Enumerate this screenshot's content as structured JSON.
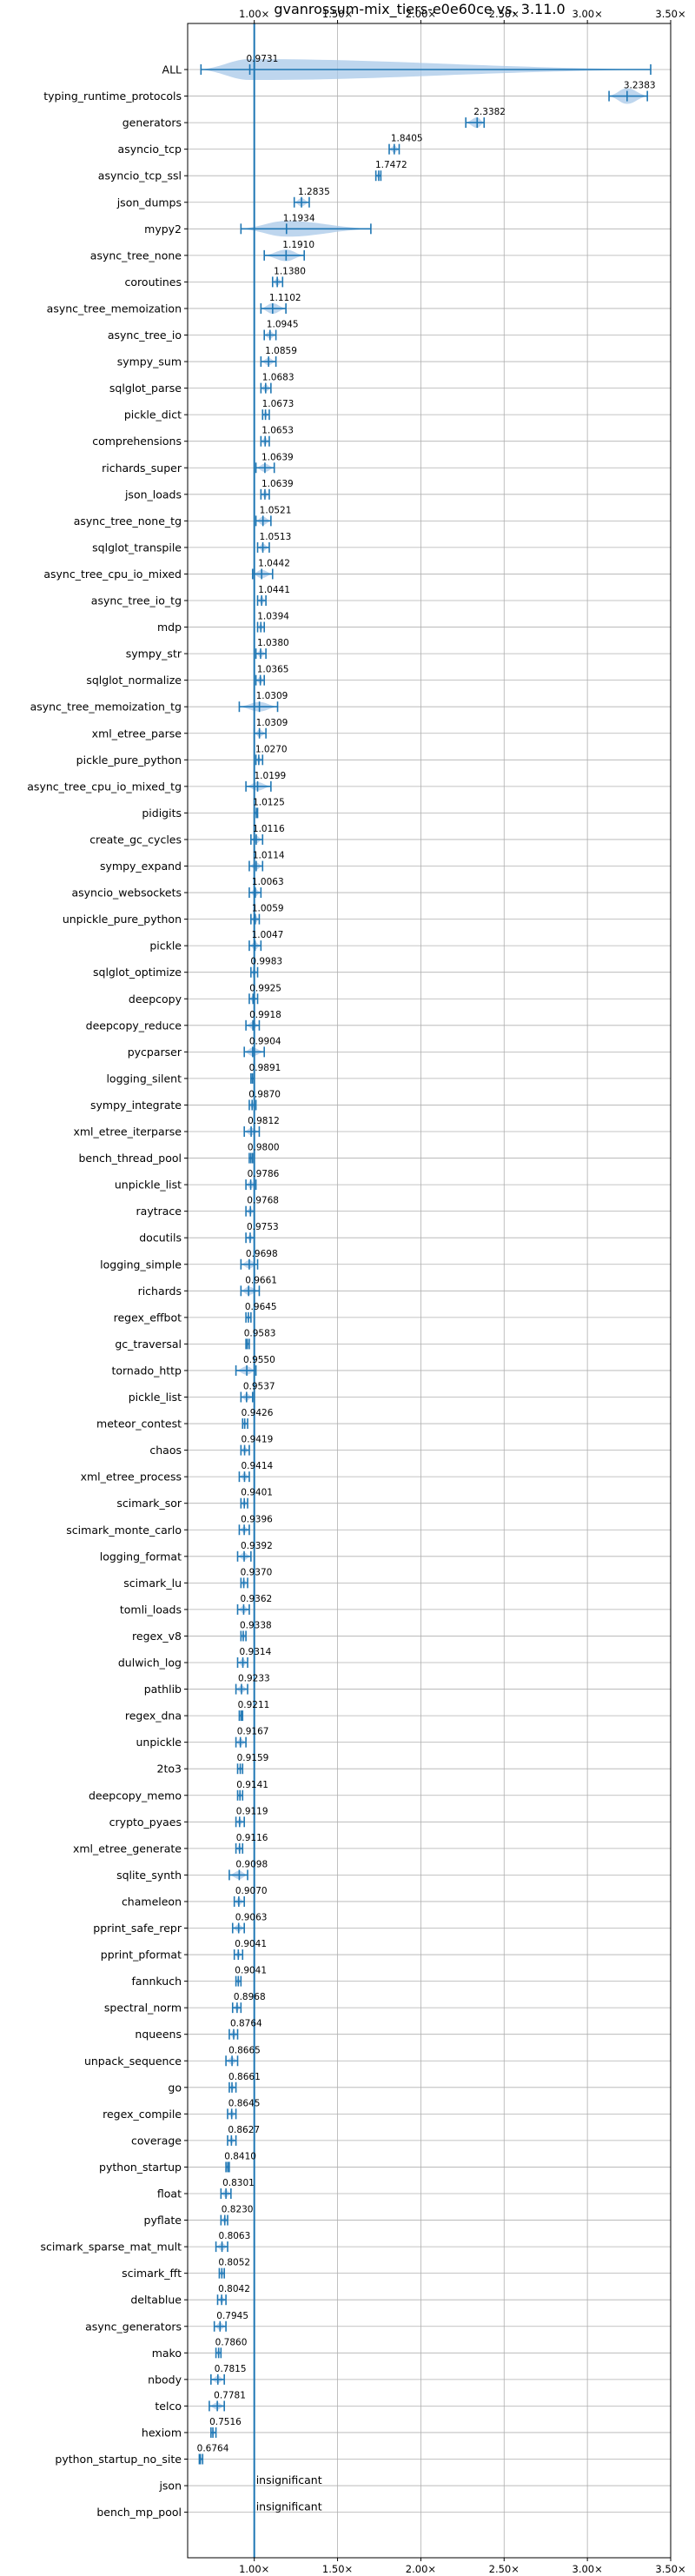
{
  "chart_data": {
    "type": "violin",
    "title": "gvanrossum-mix_tiers-e0e60ce vs. 3.11.0",
    "xlim": [
      0.6,
      3.5
    ],
    "xticks": [
      1.0,
      1.5,
      2.0,
      2.5,
      3.0,
      3.5
    ],
    "xtick_labels": [
      "1.00×",
      "1.50×",
      "2.00×",
      "2.50×",
      "3.00×",
      "3.50×"
    ],
    "reference_line": 1.0,
    "grid": true,
    "accent_color": "#1f77b4",
    "violin_color": "#a8c8e8",
    "benchmarks": [
      {
        "name": "ALL",
        "value": 0.9731,
        "label": "0.9731",
        "min": 0.68,
        "max": 3.38,
        "spread": 0.15
      },
      {
        "name": "typing_runtime_protocols",
        "value": 3.2383,
        "label": "3.2383",
        "min": 3.13,
        "max": 3.36,
        "spread": 0.1
      },
      {
        "name": "generators",
        "value": 2.3382,
        "label": "2.3382",
        "min": 2.27,
        "max": 2.38,
        "spread": 0.05
      },
      {
        "name": "asyncio_tcp",
        "value": 1.8405,
        "label": "1.8405",
        "min": 1.81,
        "max": 1.87,
        "spread": 0.02
      },
      {
        "name": "asyncio_tcp_ssl",
        "value": 1.7472,
        "label": "1.7472",
        "min": 1.73,
        "max": 1.76,
        "spread": 0.01
      },
      {
        "name": "json_dumps",
        "value": 1.2835,
        "label": "1.2835",
        "min": 1.24,
        "max": 1.33,
        "spread": 0.03
      },
      {
        "name": "mypy2",
        "value": 1.1934,
        "label": "1.1934",
        "min": 0.92,
        "max": 1.7,
        "spread": 0.1
      },
      {
        "name": "async_tree_none",
        "value": 1.191,
        "label": "1.1910",
        "min": 1.06,
        "max": 1.3,
        "spread": 0.06
      },
      {
        "name": "coroutines",
        "value": 1.138,
        "label": "1.1380",
        "min": 1.11,
        "max": 1.17,
        "spread": 0.02
      },
      {
        "name": "async_tree_memoization",
        "value": 1.1102,
        "label": "1.1102",
        "min": 1.04,
        "max": 1.19,
        "spread": 0.05
      },
      {
        "name": "async_tree_io",
        "value": 1.0945,
        "label": "1.0945",
        "min": 1.06,
        "max": 1.13,
        "spread": 0.02
      },
      {
        "name": "sympy_sum",
        "value": 1.0859,
        "label": "1.0859",
        "min": 1.04,
        "max": 1.13,
        "spread": 0.02
      },
      {
        "name": "sqlglot_parse",
        "value": 1.0683,
        "label": "1.0683",
        "min": 1.04,
        "max": 1.1,
        "spread": 0.02
      },
      {
        "name": "pickle_dict",
        "value": 1.0673,
        "label": "1.0673",
        "min": 1.05,
        "max": 1.09,
        "spread": 0.01
      },
      {
        "name": "comprehensions",
        "value": 1.0653,
        "label": "1.0653",
        "min": 1.04,
        "max": 1.09,
        "spread": 0.02
      },
      {
        "name": "richards_super",
        "value": 1.0639,
        "label": "1.0639",
        "min": 1.01,
        "max": 1.12,
        "spread": 0.03
      },
      {
        "name": "json_loads",
        "value": 1.0639,
        "label": "1.0639",
        "min": 1.04,
        "max": 1.09,
        "spread": 0.02
      },
      {
        "name": "async_tree_none_tg",
        "value": 1.0521,
        "label": "1.0521",
        "min": 1.01,
        "max": 1.1,
        "spread": 0.03
      },
      {
        "name": "sqlglot_transpile",
        "value": 1.0513,
        "label": "1.0513",
        "min": 1.02,
        "max": 1.09,
        "spread": 0.02
      },
      {
        "name": "async_tree_cpu_io_mixed",
        "value": 1.0442,
        "label": "1.0442",
        "min": 0.99,
        "max": 1.11,
        "spread": 0.03
      },
      {
        "name": "async_tree_io_tg",
        "value": 1.0441,
        "label": "1.0441",
        "min": 1.02,
        "max": 1.07,
        "spread": 0.02
      },
      {
        "name": "mdp",
        "value": 1.0394,
        "label": "1.0394",
        "min": 1.02,
        "max": 1.06,
        "spread": 0.01
      },
      {
        "name": "sympy_str",
        "value": 1.038,
        "label": "1.0380",
        "min": 1.01,
        "max": 1.07,
        "spread": 0.02
      },
      {
        "name": "sqlglot_normalize",
        "value": 1.0365,
        "label": "1.0365",
        "min": 1.01,
        "max": 1.06,
        "spread": 0.02
      },
      {
        "name": "async_tree_memoization_tg",
        "value": 1.0309,
        "label": "1.0309",
        "min": 0.91,
        "max": 1.14,
        "spread": 0.04
      },
      {
        "name": "xml_etree_parse",
        "value": 1.0309,
        "label": "1.0309",
        "min": 1.0,
        "max": 1.07,
        "spread": 0.02
      },
      {
        "name": "pickle_pure_python",
        "value": 1.027,
        "label": "1.0270",
        "min": 1.01,
        "max": 1.05,
        "spread": 0.01
      },
      {
        "name": "async_tree_cpu_io_mixed_tg",
        "value": 1.0199,
        "label": "1.0199",
        "min": 0.95,
        "max": 1.1,
        "spread": 0.03
      },
      {
        "name": "pidigits",
        "value": 1.0125,
        "label": "1.0125",
        "min": 1.0,
        "max": 1.02,
        "spread": 0.005
      },
      {
        "name": "create_gc_cycles",
        "value": 1.0116,
        "label": "1.0116",
        "min": 0.98,
        "max": 1.05,
        "spread": 0.02
      },
      {
        "name": "sympy_expand",
        "value": 1.0114,
        "label": "1.0114",
        "min": 0.97,
        "max": 1.05,
        "spread": 0.02
      },
      {
        "name": "asyncio_websockets",
        "value": 1.0063,
        "label": "1.0063",
        "min": 0.97,
        "max": 1.04,
        "spread": 0.02
      },
      {
        "name": "unpickle_pure_python",
        "value": 1.0059,
        "label": "1.0059",
        "min": 0.98,
        "max": 1.03,
        "spread": 0.02
      },
      {
        "name": "pickle",
        "value": 1.0047,
        "label": "1.0047",
        "min": 0.97,
        "max": 1.04,
        "spread": 0.02
      },
      {
        "name": "sqlglot_optimize",
        "value": 0.9983,
        "label": "0.9983",
        "min": 0.98,
        "max": 1.02,
        "spread": 0.01
      },
      {
        "name": "deepcopy",
        "value": 0.9925,
        "label": "0.9925",
        "min": 0.97,
        "max": 1.02,
        "spread": 0.01
      },
      {
        "name": "deepcopy_reduce",
        "value": 0.9918,
        "label": "0.9918",
        "min": 0.95,
        "max": 1.03,
        "spread": 0.02
      },
      {
        "name": "pycparser",
        "value": 0.9904,
        "label": "0.9904",
        "min": 0.94,
        "max": 1.06,
        "spread": 0.03
      },
      {
        "name": "logging_silent",
        "value": 0.9891,
        "label": "0.9891",
        "min": 0.98,
        "max": 1.0,
        "spread": 0.005
      },
      {
        "name": "sympy_integrate",
        "value": 0.987,
        "label": "0.9870",
        "min": 0.97,
        "max": 1.01,
        "spread": 0.01
      },
      {
        "name": "xml_etree_iterparse",
        "value": 0.9812,
        "label": "0.9812",
        "min": 0.94,
        "max": 1.03,
        "spread": 0.02
      },
      {
        "name": "bench_thread_pool",
        "value": 0.98,
        "label": "0.9800",
        "min": 0.97,
        "max": 0.99,
        "spread": 0.005
      },
      {
        "name": "unpickle_list",
        "value": 0.9786,
        "label": "0.9786",
        "min": 0.95,
        "max": 1.01,
        "spread": 0.02
      },
      {
        "name": "raytrace",
        "value": 0.9768,
        "label": "0.9768",
        "min": 0.95,
        "max": 1.0,
        "spread": 0.01
      },
      {
        "name": "docutils",
        "value": 0.9753,
        "label": "0.9753",
        "min": 0.95,
        "max": 1.0,
        "spread": 0.01
      },
      {
        "name": "logging_simple",
        "value": 0.9698,
        "label": "0.9698",
        "min": 0.92,
        "max": 1.02,
        "spread": 0.03
      },
      {
        "name": "richards",
        "value": 0.9661,
        "label": "0.9661",
        "min": 0.92,
        "max": 1.03,
        "spread": 0.03
      },
      {
        "name": "regex_effbot",
        "value": 0.9645,
        "label": "0.9645",
        "min": 0.95,
        "max": 0.98,
        "spread": 0.01
      },
      {
        "name": "gc_traversal",
        "value": 0.9583,
        "label": "0.9583",
        "min": 0.95,
        "max": 0.97,
        "spread": 0.005
      },
      {
        "name": "tornado_http",
        "value": 0.955,
        "label": "0.9550",
        "min": 0.89,
        "max": 1.01,
        "spread": 0.03
      },
      {
        "name": "pickle_list",
        "value": 0.9537,
        "label": "0.9537",
        "min": 0.92,
        "max": 0.99,
        "spread": 0.02
      },
      {
        "name": "meteor_contest",
        "value": 0.9426,
        "label": "0.9426",
        "min": 0.93,
        "max": 0.96,
        "spread": 0.01
      },
      {
        "name": "chaos",
        "value": 0.9419,
        "label": "0.9419",
        "min": 0.92,
        "max": 0.97,
        "spread": 0.01
      },
      {
        "name": "xml_etree_process",
        "value": 0.9414,
        "label": "0.9414",
        "min": 0.91,
        "max": 0.97,
        "spread": 0.02
      },
      {
        "name": "scimark_sor",
        "value": 0.9401,
        "label": "0.9401",
        "min": 0.92,
        "max": 0.96,
        "spread": 0.01
      },
      {
        "name": "scimark_monte_carlo",
        "value": 0.9396,
        "label": "0.9396",
        "min": 0.91,
        "max": 0.97,
        "spread": 0.01
      },
      {
        "name": "logging_format",
        "value": 0.9392,
        "label": "0.9392",
        "min": 0.9,
        "max": 0.98,
        "spread": 0.02
      },
      {
        "name": "scimark_lu",
        "value": 0.937,
        "label": "0.9370",
        "min": 0.92,
        "max": 0.96,
        "spread": 0.01
      },
      {
        "name": "tomli_loads",
        "value": 0.9362,
        "label": "0.9362",
        "min": 0.9,
        "max": 0.97,
        "spread": 0.02
      },
      {
        "name": "regex_v8",
        "value": 0.9338,
        "label": "0.9338",
        "min": 0.92,
        "max": 0.95,
        "spread": 0.01
      },
      {
        "name": "dulwich_log",
        "value": 0.9314,
        "label": "0.9314",
        "min": 0.9,
        "max": 0.96,
        "spread": 0.02
      },
      {
        "name": "pathlib",
        "value": 0.9233,
        "label": "0.9233",
        "min": 0.89,
        "max": 0.96,
        "spread": 0.02
      },
      {
        "name": "regex_dna",
        "value": 0.9211,
        "label": "0.9211",
        "min": 0.91,
        "max": 0.93,
        "spread": 0.005
      },
      {
        "name": "unpickle",
        "value": 0.9167,
        "label": "0.9167",
        "min": 0.89,
        "max": 0.95,
        "spread": 0.02
      },
      {
        "name": "2to3",
        "value": 0.9159,
        "label": "0.9159",
        "min": 0.9,
        "max": 0.93,
        "spread": 0.005
      },
      {
        "name": "deepcopy_memo",
        "value": 0.9141,
        "label": "0.9141",
        "min": 0.9,
        "max": 0.93,
        "spread": 0.01
      },
      {
        "name": "crypto_pyaes",
        "value": 0.9119,
        "label": "0.9119",
        "min": 0.89,
        "max": 0.94,
        "spread": 0.01
      },
      {
        "name": "xml_etree_generate",
        "value": 0.9116,
        "label": "0.9116",
        "min": 0.89,
        "max": 0.93,
        "spread": 0.01
      },
      {
        "name": "sqlite_synth",
        "value": 0.9098,
        "label": "0.9098",
        "min": 0.85,
        "max": 0.96,
        "spread": 0.03
      },
      {
        "name": "chameleon",
        "value": 0.907,
        "label": "0.9070",
        "min": 0.88,
        "max": 0.94,
        "spread": 0.02
      },
      {
        "name": "pprint_safe_repr",
        "value": 0.9063,
        "label": "0.9063",
        "min": 0.87,
        "max": 0.94,
        "spread": 0.02
      },
      {
        "name": "pprint_pformat",
        "value": 0.9041,
        "label": "0.9041",
        "min": 0.88,
        "max": 0.93,
        "spread": 0.01
      },
      {
        "name": "fannkuch",
        "value": 0.9041,
        "label": "0.9041",
        "min": 0.89,
        "max": 0.92,
        "spread": 0.01
      },
      {
        "name": "spectral_norm",
        "value": 0.8968,
        "label": "0.8968",
        "min": 0.87,
        "max": 0.92,
        "spread": 0.01
      },
      {
        "name": "nqueens",
        "value": 0.8764,
        "label": "0.8764",
        "min": 0.85,
        "max": 0.9,
        "spread": 0.02
      },
      {
        "name": "unpack_sequence",
        "value": 0.8665,
        "label": "0.8665",
        "min": 0.83,
        "max": 0.9,
        "spread": 0.02
      },
      {
        "name": "go",
        "value": 0.8661,
        "label": "0.8661",
        "min": 0.85,
        "max": 0.89,
        "spread": 0.01
      },
      {
        "name": "regex_compile",
        "value": 0.8645,
        "label": "0.8645",
        "min": 0.84,
        "max": 0.89,
        "spread": 0.01
      },
      {
        "name": "coverage",
        "value": 0.8627,
        "label": "0.8627",
        "min": 0.84,
        "max": 0.89,
        "spread": 0.01
      },
      {
        "name": "python_startup",
        "value": 0.841,
        "label": "0.8410",
        "min": 0.83,
        "max": 0.85,
        "spread": 0.005
      },
      {
        "name": "float",
        "value": 0.8301,
        "label": "0.8301",
        "min": 0.8,
        "max": 0.86,
        "spread": 0.02
      },
      {
        "name": "pyflate",
        "value": 0.823,
        "label": "0.8230",
        "min": 0.8,
        "max": 0.84,
        "spread": 0.01
      },
      {
        "name": "scimark_sparse_mat_mult",
        "value": 0.8063,
        "label": "0.8063",
        "min": 0.77,
        "max": 0.84,
        "spread": 0.02
      },
      {
        "name": "scimark_fft",
        "value": 0.8052,
        "label": "0.8052",
        "min": 0.79,
        "max": 0.82,
        "spread": 0.01
      },
      {
        "name": "deltablue",
        "value": 0.8042,
        "label": "0.8042",
        "min": 0.78,
        "max": 0.83,
        "spread": 0.01
      },
      {
        "name": "async_generators",
        "value": 0.7945,
        "label": "0.7945",
        "min": 0.76,
        "max": 0.83,
        "spread": 0.02
      },
      {
        "name": "mako",
        "value": 0.786,
        "label": "0.7860",
        "min": 0.77,
        "max": 0.8,
        "spread": 0.01
      },
      {
        "name": "nbody",
        "value": 0.7815,
        "label": "0.7815",
        "min": 0.74,
        "max": 0.82,
        "spread": 0.02
      },
      {
        "name": "telco",
        "value": 0.7781,
        "label": "0.7781",
        "min": 0.73,
        "max": 0.82,
        "spread": 0.02
      },
      {
        "name": "hexiom",
        "value": 0.7516,
        "label": "0.7516",
        "min": 0.74,
        "max": 0.77,
        "spread": 0.01
      },
      {
        "name": "python_startup_no_site",
        "value": 0.6764,
        "label": "0.6764",
        "min": 0.67,
        "max": 0.69,
        "spread": 0.005
      },
      {
        "name": "json",
        "value": null,
        "label": "insignificant",
        "min": null,
        "max": null,
        "spread": null
      },
      {
        "name": "bench_mp_pool",
        "value": null,
        "label": "insignificant",
        "min": null,
        "max": null,
        "spread": null
      }
    ]
  }
}
